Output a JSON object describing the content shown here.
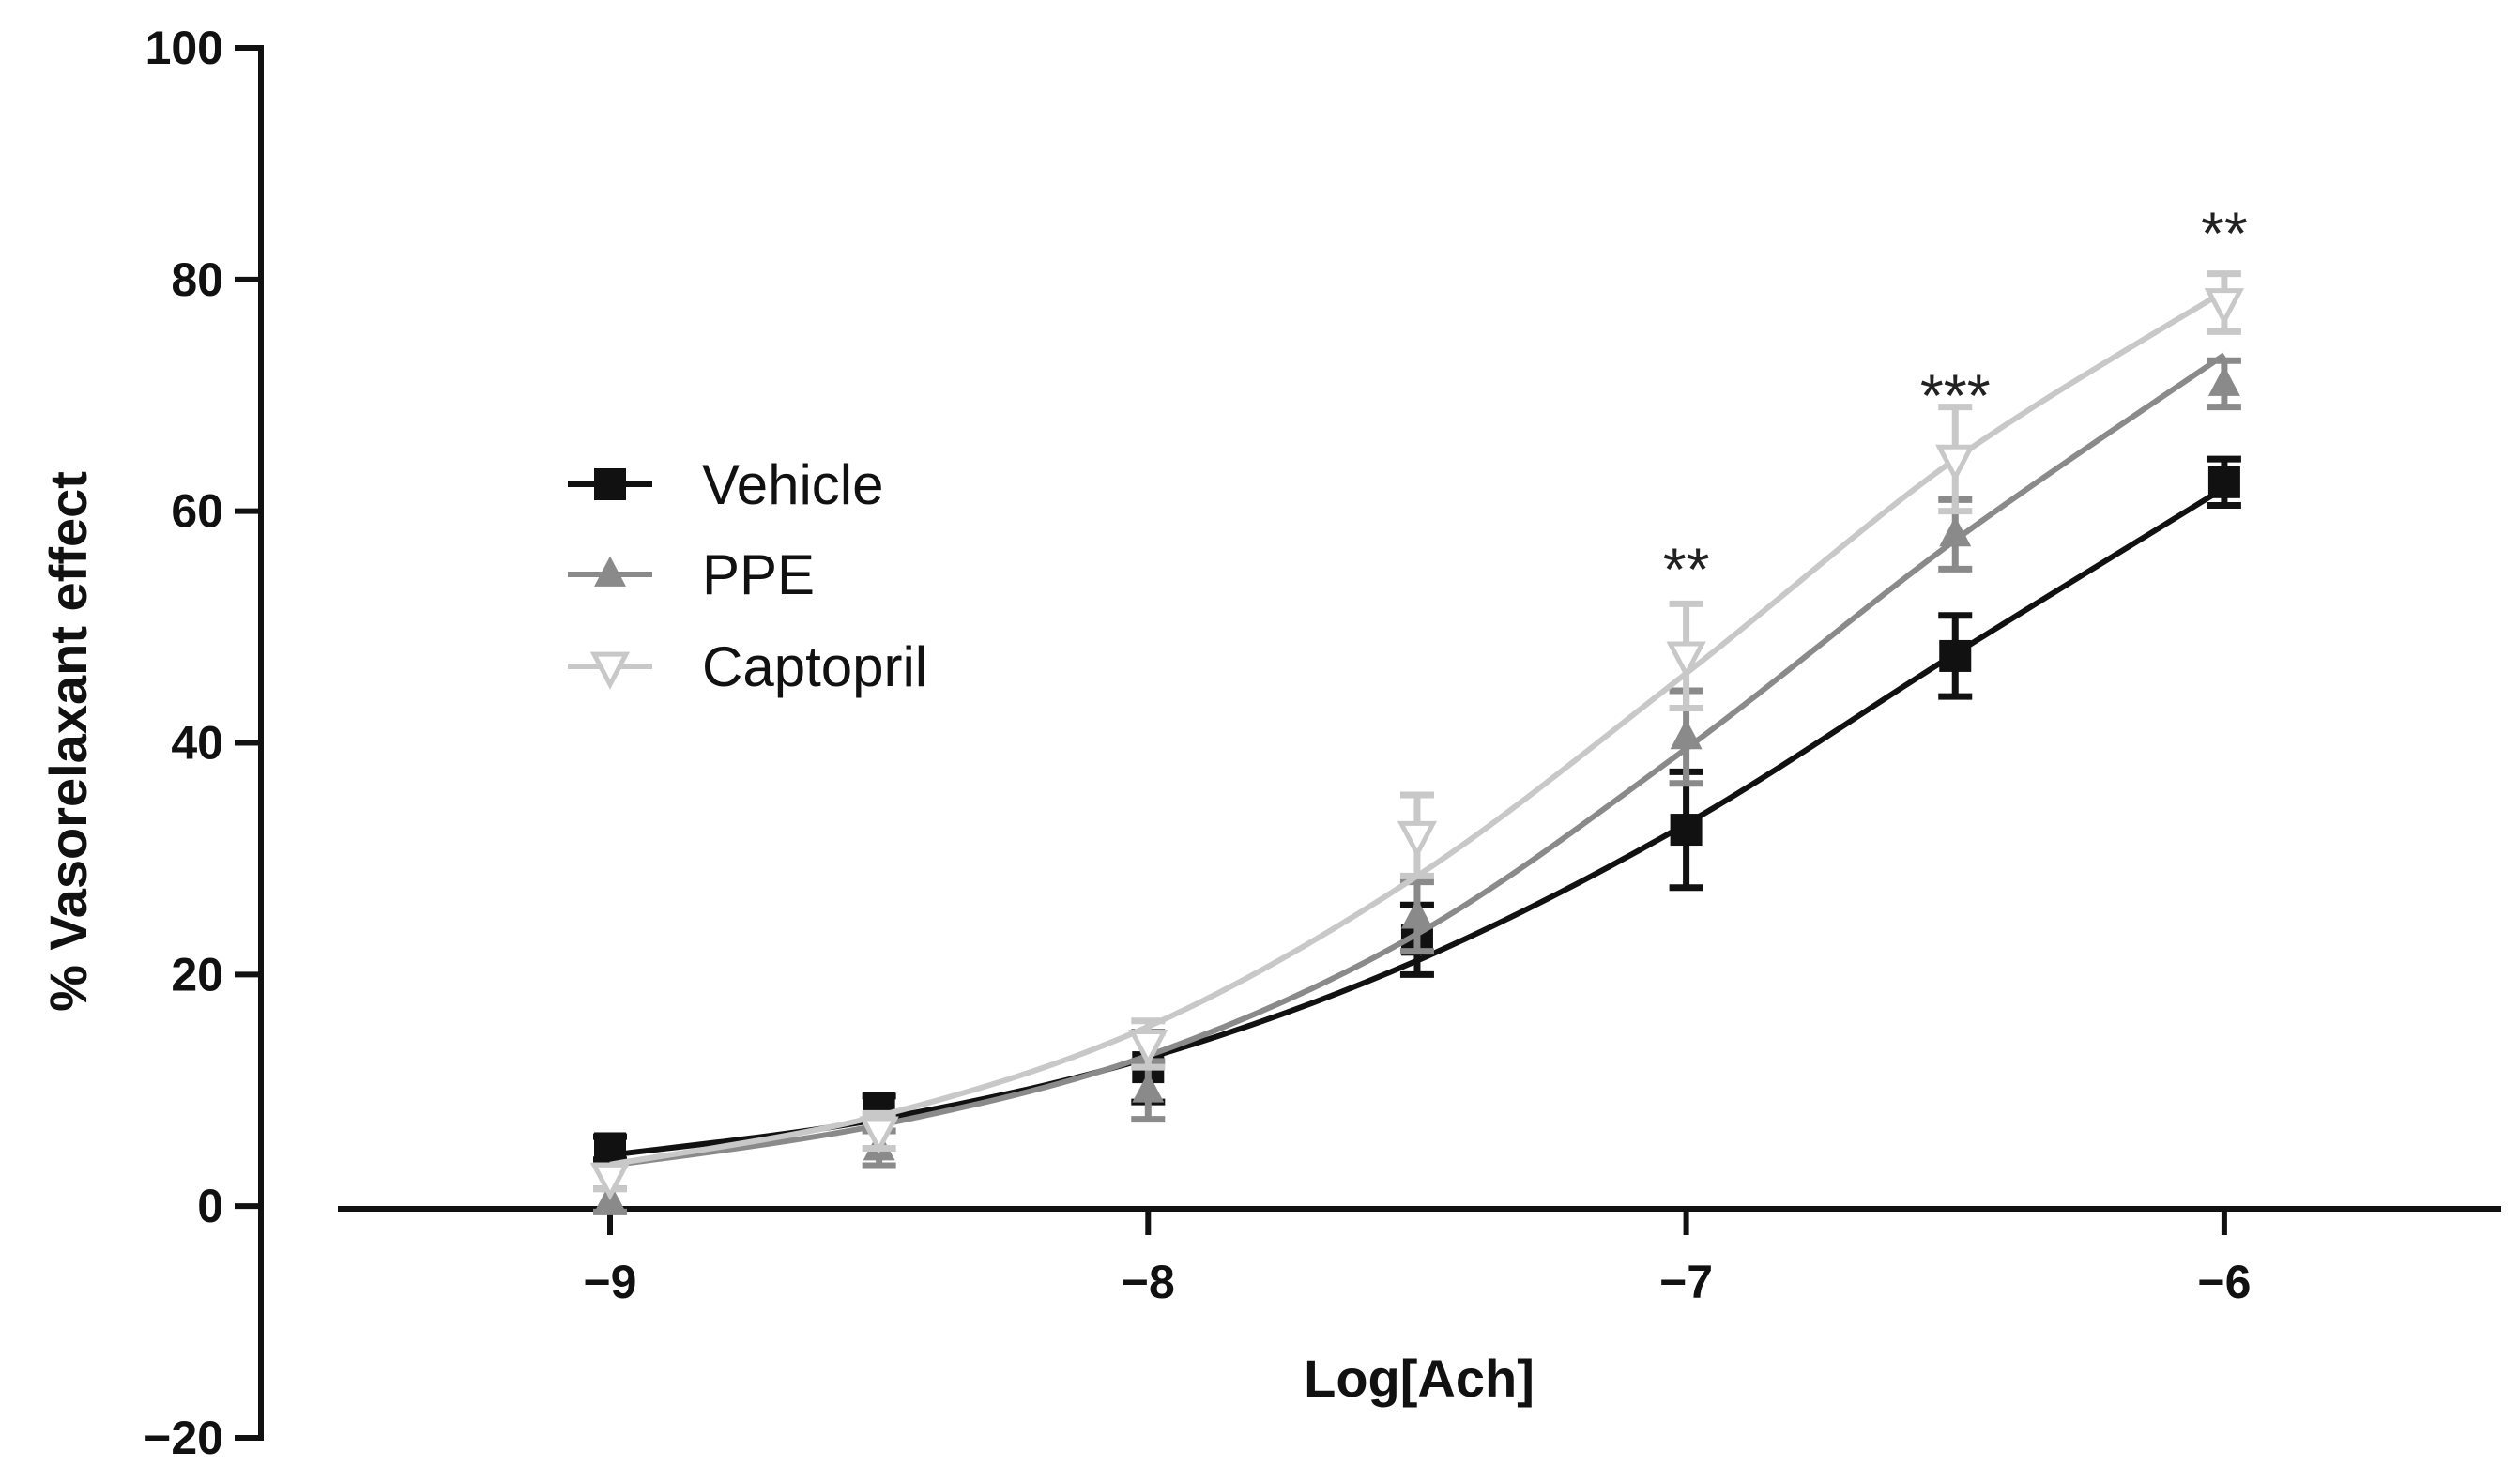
{
  "chart_data": {
    "type": "line",
    "title": "",
    "xlabel": "Log[Ach]",
    "ylabel": "% Vasorelaxant effect",
    "xlim": [
      -9.5,
      -5.5
    ],
    "ylim": [
      -20,
      100
    ],
    "x_ticks": [
      -9,
      -8,
      -7,
      -6
    ],
    "x_tick_labels": [
      "−9",
      "−8",
      "−7",
      "−6"
    ],
    "y_ticks": [
      -20,
      0,
      20,
      40,
      60,
      80,
      100
    ],
    "y_tick_labels": [
      "−20",
      "0",
      "20",
      "40",
      "60",
      "80",
      "100"
    ],
    "grid": false,
    "legend_position": "left-middle",
    "x": [
      -9,
      -8.5,
      -8,
      -7.5,
      -7,
      -6.5,
      -6
    ],
    "series": [
      {
        "name": "Vehicle",
        "color": "#111111",
        "marker": "square",
        "values": [
          5,
          8.5,
          12,
          23,
          32.5,
          47.5,
          62.5
        ],
        "errors": [
          1,
          1,
          3,
          3,
          5,
          3.5,
          2
        ],
        "fit": [
          4.4,
          7.5,
          12.8,
          21.2,
          33,
          47.7,
          62
        ]
      },
      {
        "name": "PPE",
        "color": "#8a8a8a",
        "marker": "triangle-up",
        "values": [
          0.5,
          5,
          10,
          25,
          40.5,
          58,
          71
        ],
        "errors": [
          1,
          1.5,
          2.5,
          3,
          4,
          3,
          2
        ],
        "fit": [
          3.5,
          7,
          13,
          23.5,
          39.5,
          57.5,
          73.5
        ]
      },
      {
        "name": "Captopril",
        "color": "#c8c8c8",
        "marker": "triangle-down",
        "values": [
          2.5,
          6.5,
          14,
          32,
          47.5,
          64.5,
          78
        ],
        "errors": [
          1,
          1.5,
          2,
          3.5,
          4.5,
          4.5,
          2.5
        ],
        "fit": [
          3.6,
          7.8,
          15.5,
          28.5,
          46,
          64.5,
          79
        ]
      }
    ],
    "annotations": [
      {
        "x": -7,
        "y": 55,
        "text": "**"
      },
      {
        "x": -6.5,
        "y": 70,
        "text": "***"
      },
      {
        "x": -6,
        "y": 84,
        "text": "**"
      }
    ]
  }
}
